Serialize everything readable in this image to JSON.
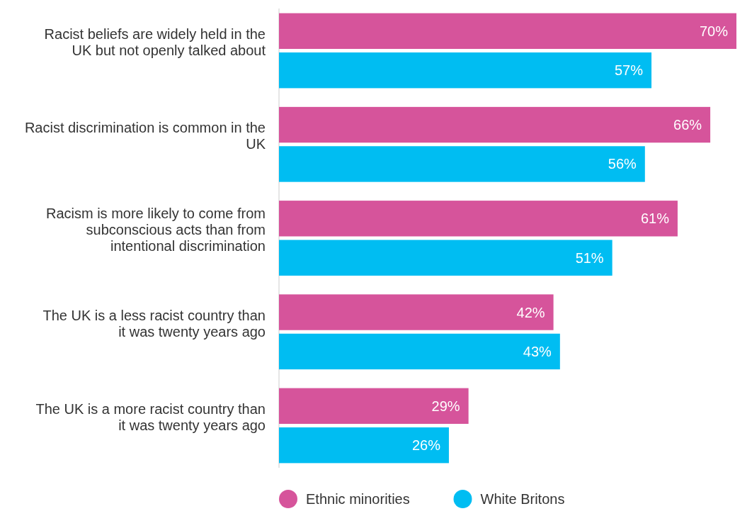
{
  "chart_data": {
    "type": "bar",
    "orientation": "horizontal",
    "categories": [
      "Racist beliefs are widely held in the UK but not openly talked about",
      "Racist discrimination is common in the UK",
      "Racism is more likely to come from subconscious acts than from intentional discrimination",
      "The UK is a less racist country than it was twenty years ago",
      "The UK is a more racist country than it was twenty years ago"
    ],
    "series": [
      {
        "name": "Ethnic minorities",
        "color": "#d6549b",
        "values": [
          70,
          66,
          61,
          42,
          29
        ],
        "value_labels": [
          "70%",
          "66%",
          "61%",
          "42%",
          "29%"
        ]
      },
      {
        "name": "White Britons",
        "color": "#00bdf2",
        "values": [
          57,
          56,
          51,
          43,
          26
        ],
        "value_labels": [
          "57%",
          "56%",
          "51%",
          "43%",
          "26%"
        ]
      }
    ],
    "legend": "bottom"
  }
}
